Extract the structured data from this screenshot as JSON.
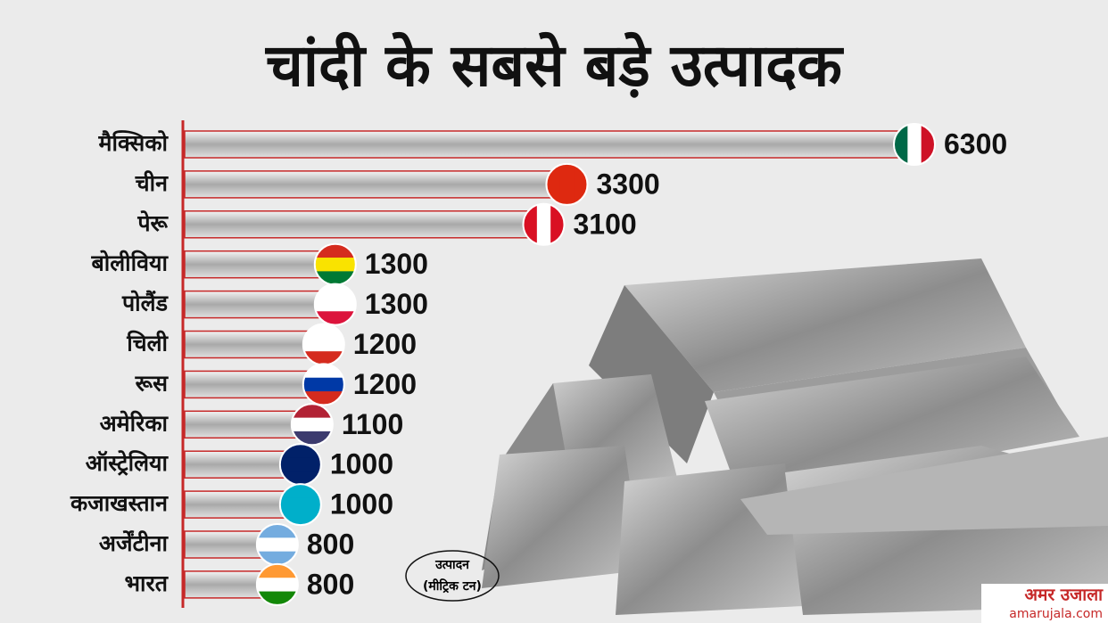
{
  "chart_data": {
    "type": "bar",
    "orientation": "horizontal",
    "title": "चांदी के सबसे बड़े उत्पादक",
    "categories": [
      "मैक्सिको",
      "चीन",
      "पेरू",
      "बोलीविया",
      "पोलैंड",
      "चिली",
      "रूस",
      "अमेरिका",
      "ऑस्ट्रेलिया",
      "कजाखस्तान",
      "अर्जेंटीना",
      "भारत"
    ],
    "values": [
      6300,
      3300,
      3100,
      1300,
      1300,
      1200,
      1200,
      1100,
      1000,
      1000,
      800,
      800
    ],
    "unit_label": [
      "उत्पादन",
      "(मीट्रिक टन)"
    ]
  },
  "footer": {
    "logo": "अमर उजाला",
    "website": "amarujala.com"
  }
}
